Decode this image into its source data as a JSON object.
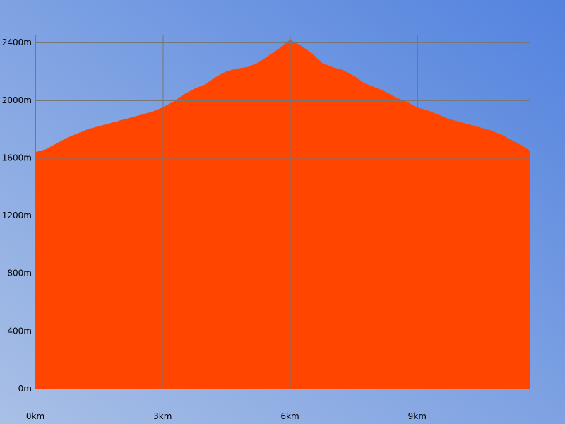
{
  "chart_data": {
    "type": "area",
    "title": "",
    "xlabel": "",
    "ylabel": "",
    "x_unit": "km",
    "y_unit": "m",
    "xlim": [
      0,
      11.65
    ],
    "ylim": [
      0,
      2450
    ],
    "x_ticks": [
      0,
      3,
      6,
      9
    ],
    "x_tick_labels": [
      "0km",
      "3km",
      "6km",
      "9km"
    ],
    "y_ticks": [
      0,
      400,
      800,
      1200,
      1600,
      2000,
      2400
    ],
    "y_tick_labels": [
      "0m",
      "400m",
      "800m",
      "1200m",
      "1600m",
      "2000m",
      "2400m"
    ],
    "grid": true,
    "legend": false,
    "colors": {
      "fill": "#FF4500",
      "grid": "#777777",
      "background_start": "#A9C0E6",
      "background_end": "#5383DF"
    },
    "series": [
      {
        "x": [
          0,
          0.25,
          0.5,
          0.75,
          1.0,
          1.25,
          1.5,
          1.75,
          2.0,
          2.25,
          2.5,
          2.75,
          3.0,
          3.25,
          3.5,
          3.75,
          4.0,
          4.25,
          4.5,
          4.75,
          5.0,
          5.25,
          5.5,
          5.75,
          6.0,
          6.25,
          6.5,
          6.75,
          7.0,
          7.25,
          7.5,
          7.75,
          8.0,
          8.25,
          8.5,
          8.75,
          9.0,
          9.25,
          9.5,
          9.75,
          10.0,
          10.25,
          10.5,
          10.75,
          11.0,
          11.25,
          11.5,
          11.65
        ],
        "values": [
          1640,
          1660,
          1700,
          1740,
          1770,
          1800,
          1820,
          1840,
          1860,
          1880,
          1900,
          1920,
          1950,
          1990,
          2040,
          2080,
          2110,
          2160,
          2200,
          2220,
          2230,
          2260,
          2310,
          2360,
          2420,
          2380,
          2330,
          2260,
          2230,
          2210,
          2170,
          2120,
          2090,
          2060,
          2020,
          1990,
          1950,
          1930,
          1900,
          1870,
          1850,
          1830,
          1810,
          1790,
          1760,
          1720,
          1680,
          1650
        ]
      }
    ]
  }
}
